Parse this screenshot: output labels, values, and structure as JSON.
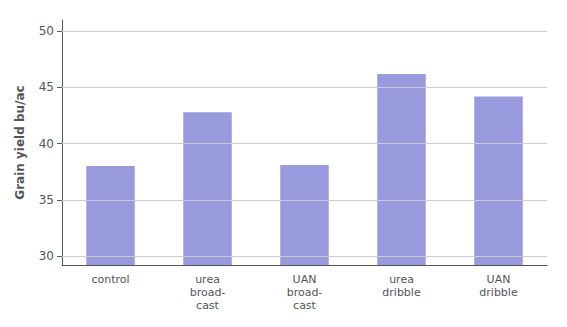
{
  "chart_data": {
    "type": "bar",
    "categories": [
      "control",
      "urea\nbroad-\ncast",
      "UAN\nbroad-\ncast",
      "urea\ndribble",
      "UAN\ndribble"
    ],
    "values": [
      38.0,
      42.8,
      38.1,
      46.2,
      44.2
    ],
    "color": "#9999dd",
    "ylabel": "Grain yield bu/ac",
    "ylim": [
      29.2,
      51
    ],
    "yticks": [
      30,
      35,
      40,
      45,
      50
    ],
    "grid": true
  }
}
